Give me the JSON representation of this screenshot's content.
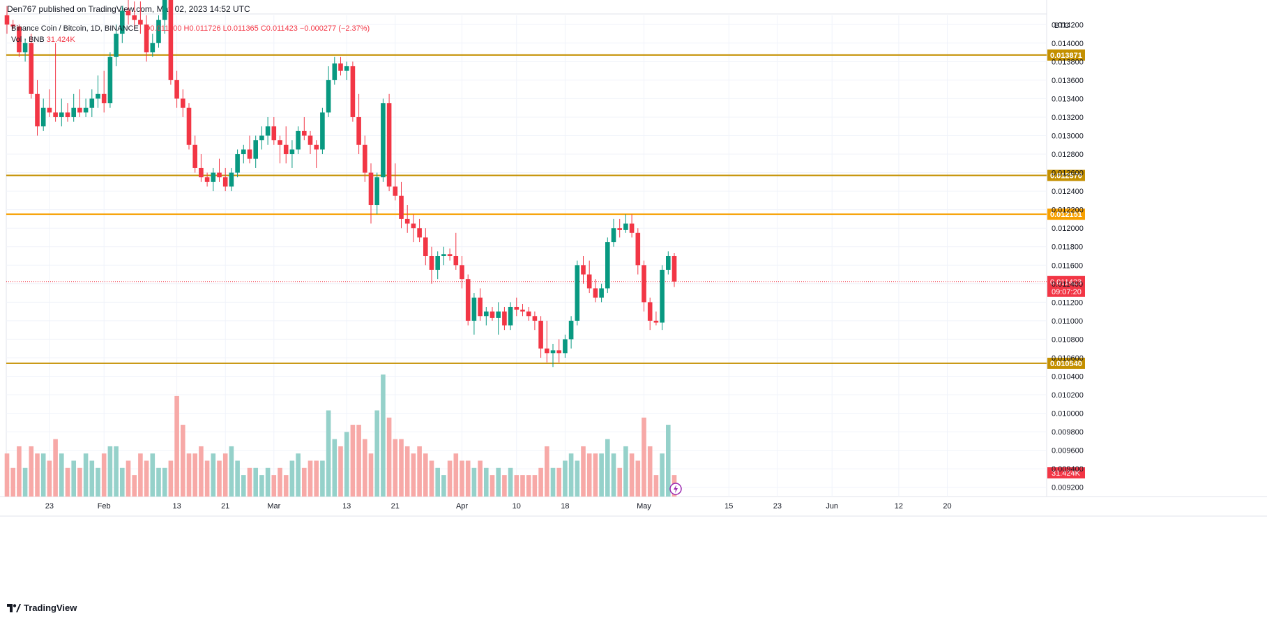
{
  "header": {
    "published": "Den767 published on TradingView.com, May 02, 2023 14:52 UTC"
  },
  "legend": {
    "symbol": "Binance Coin / Bitcoin, 1D, BINANCE",
    "ohlc": "O0.011700  H0.011726  L0.011365  C0.011423  −0.000277 (−2.37%)",
    "volume_label": "Vol · BNB",
    "volume_value": "31.424K"
  },
  "footer": {
    "brand": "TradingView"
  },
  "colors": {
    "up": "#089981",
    "down": "#f23645",
    "up_vol": "#95d1ca",
    "down_vol": "#f7a9a7",
    "level": "#c49000",
    "level_bright": "#f7a000",
    "grid": "#f0f3fa"
  },
  "chart_data": {
    "type": "candlestick",
    "price_axis_label": "BTC",
    "ylim": [
      0.0091,
      0.0143
    ],
    "y_ticks": [
      "0.009200",
      "0.009400",
      "0.009600",
      "0.009800",
      "0.010000",
      "0.010200",
      "0.010400",
      "0.010600",
      "0.010800",
      "0.011000",
      "0.011200",
      "0.011400",
      "0.011600",
      "0.011800",
      "0.012000",
      "0.012200",
      "0.012400",
      "0.012600",
      "0.012800",
      "0.013000",
      "0.013200",
      "0.013400",
      "0.013600",
      "0.013800",
      "0.014000",
      "0.014200"
    ],
    "x_labels": [
      {
        "label": "23",
        "index": 7
      },
      {
        "label": "Feb",
        "index": 16
      },
      {
        "label": "13",
        "index": 28
      },
      {
        "label": "21",
        "index": 36
      },
      {
        "label": "Mar",
        "index": 44
      },
      {
        "label": "13",
        "index": 56
      },
      {
        "label": "21",
        "index": 64
      },
      {
        "label": "Apr",
        "index": 75
      },
      {
        "label": "10",
        "index": 84
      },
      {
        "label": "18",
        "index": 92
      },
      {
        "label": "May",
        "index": 105
      },
      {
        "label": "15",
        "index": 119
      },
      {
        "label": "23",
        "index": 127
      },
      {
        "label": "Jun",
        "index": 136
      },
      {
        "label": "12",
        "index": 147
      },
      {
        "label": "20",
        "index": 155
      }
    ],
    "levels": [
      {
        "value": 0.013871,
        "label": "0.013871",
        "bright": false
      },
      {
        "value": 0.01257,
        "label": "0.012570",
        "bright": false
      },
      {
        "value": 0.012151,
        "label": "0.012151",
        "bright": true
      },
      {
        "value": 0.01054,
        "label": "0.010540",
        "bright": false
      }
    ],
    "last_price": {
      "value": 0.011423,
      "label": "0.011423",
      "countdown": "09:07:20"
    },
    "volume_last_label": "31.424K",
    "candles": [
      [
        0.0143,
        0.0144,
        0.0141,
        0.0142,
        6
      ],
      [
        0.0142,
        0.01425,
        0.01415,
        0.01418,
        4
      ],
      [
        0.01418,
        0.0142,
        0.01385,
        0.0139,
        7
      ],
      [
        0.0139,
        0.01405,
        0.0138,
        0.014,
        4
      ],
      [
        0.014,
        0.0141,
        0.0134,
        0.01345,
        7
      ],
      [
        0.01345,
        0.0136,
        0.013,
        0.0131,
        6
      ],
      [
        0.0131,
        0.0134,
        0.01305,
        0.0133,
        6
      ],
      [
        0.0133,
        0.0135,
        0.0132,
        0.01325,
        5
      ],
      [
        0.01325,
        0.014,
        0.01315,
        0.0132,
        8
      ],
      [
        0.0132,
        0.0134,
        0.0131,
        0.01325,
        6
      ],
      [
        0.01325,
        0.01335,
        0.01315,
        0.0132,
        4
      ],
      [
        0.0132,
        0.01345,
        0.01315,
        0.0133,
        5
      ],
      [
        0.0133,
        0.0135,
        0.0132,
        0.01325,
        4
      ],
      [
        0.01325,
        0.0134,
        0.0132,
        0.0133,
        6
      ],
      [
        0.0133,
        0.0135,
        0.0132,
        0.0134,
        5
      ],
      [
        0.0134,
        0.01365,
        0.0133,
        0.01345,
        4
      ],
      [
        0.01345,
        0.0137,
        0.01325,
        0.01335,
        6
      ],
      [
        0.01335,
        0.0139,
        0.0133,
        0.01385,
        7
      ],
      [
        0.01385,
        0.0142,
        0.01375,
        0.0141,
        7
      ],
      [
        0.0141,
        0.0144,
        0.014,
        0.01435,
        4
      ],
      [
        0.01435,
        0.0145,
        0.0142,
        0.0143,
        5
      ],
      [
        0.0143,
        0.01445,
        0.01415,
        0.01425,
        3
      ],
      [
        0.01425,
        0.01445,
        0.0141,
        0.0142,
        6
      ],
      [
        0.0142,
        0.0143,
        0.0138,
        0.0139,
        5
      ],
      [
        0.0139,
        0.0141,
        0.01385,
        0.014,
        6
      ],
      [
        0.014,
        0.0143,
        0.01395,
        0.01425,
        4
      ],
      [
        0.01425,
        0.0147,
        0.0141,
        0.0145,
        4
      ],
      [
        0.0145,
        0.01465,
        0.01355,
        0.0136,
        5
      ],
      [
        0.0136,
        0.0137,
        0.0133,
        0.0134,
        14
      ],
      [
        0.0134,
        0.0135,
        0.0132,
        0.0133,
        10
      ],
      [
        0.0133,
        0.01335,
        0.01285,
        0.0129,
        6
      ],
      [
        0.0129,
        0.013,
        0.0126,
        0.01265,
        6
      ],
      [
        0.01265,
        0.0128,
        0.0125,
        0.01255,
        7
      ],
      [
        0.01255,
        0.0126,
        0.01245,
        0.0125,
        5
      ],
      [
        0.0125,
        0.01265,
        0.0124,
        0.0126,
        6
      ],
      [
        0.0126,
        0.01275,
        0.0125,
        0.01255,
        5
      ],
      [
        0.01255,
        0.01265,
        0.0124,
        0.01245,
        6
      ],
      [
        0.01245,
        0.01265,
        0.0124,
        0.0126,
        7
      ],
      [
        0.0126,
        0.01285,
        0.01255,
        0.0128,
        5
      ],
      [
        0.0128,
        0.0129,
        0.0127,
        0.01285,
        3
      ],
      [
        0.01285,
        0.013,
        0.0127,
        0.01275,
        4
      ],
      [
        0.01275,
        0.013,
        0.01265,
        0.01295,
        4
      ],
      [
        0.01295,
        0.0131,
        0.01285,
        0.013,
        3
      ],
      [
        0.013,
        0.0132,
        0.0129,
        0.0131,
        4
      ],
      [
        0.0131,
        0.0132,
        0.0129,
        0.01295,
        3
      ],
      [
        0.01295,
        0.013,
        0.0127,
        0.0129,
        4
      ],
      [
        0.0129,
        0.0131,
        0.0127,
        0.0128,
        3
      ],
      [
        0.0128,
        0.01295,
        0.01265,
        0.01285,
        5
      ],
      [
        0.01285,
        0.0131,
        0.0128,
        0.01305,
        6
      ],
      [
        0.01305,
        0.0132,
        0.01295,
        0.013,
        4
      ],
      [
        0.013,
        0.01305,
        0.0128,
        0.0129,
        5
      ],
      [
        0.0129,
        0.01295,
        0.01265,
        0.01285,
        5
      ],
      [
        0.01285,
        0.0133,
        0.0128,
        0.01325,
        5
      ],
      [
        0.01325,
        0.01375,
        0.0132,
        0.0136,
        12
      ],
      [
        0.0136,
        0.01385,
        0.01355,
        0.01378,
        8
      ],
      [
        0.01378,
        0.01385,
        0.01365,
        0.0137,
        7
      ],
      [
        0.0137,
        0.0138,
        0.0136,
        0.01375,
        9
      ],
      [
        0.01375,
        0.0138,
        0.01315,
        0.0132,
        10
      ],
      [
        0.0132,
        0.01345,
        0.0128,
        0.0129,
        10
      ],
      [
        0.0129,
        0.013,
        0.0125,
        0.0126,
        8
      ],
      [
        0.0126,
        0.0127,
        0.01205,
        0.01225,
        6
      ],
      [
        0.01225,
        0.0126,
        0.01215,
        0.01255,
        12
      ],
      [
        0.01255,
        0.0134,
        0.0125,
        0.01335,
        17
      ],
      [
        0.01335,
        0.01345,
        0.0124,
        0.01245,
        11
      ],
      [
        0.01245,
        0.0127,
        0.0123,
        0.01235,
        8
      ],
      [
        0.01235,
        0.0125,
        0.012,
        0.0121,
        8
      ],
      [
        0.0121,
        0.01225,
        0.01195,
        0.01205,
        7
      ],
      [
        0.01205,
        0.01215,
        0.01185,
        0.012,
        6
      ],
      [
        0.012,
        0.0121,
        0.01185,
        0.0119,
        7
      ],
      [
        0.0119,
        0.012,
        0.0116,
        0.0117,
        6
      ],
      [
        0.0117,
        0.0118,
        0.0114,
        0.01155,
        5
      ],
      [
        0.01155,
        0.01175,
        0.01145,
        0.0117,
        4
      ],
      [
        0.0117,
        0.0118,
        0.0116,
        0.01172,
        3
      ],
      [
        0.01172,
        0.01178,
        0.01165,
        0.0117,
        5
      ],
      [
        0.0117,
        0.01195,
        0.01155,
        0.0116,
        6
      ],
      [
        0.0116,
        0.0117,
        0.01135,
        0.01145,
        5
      ],
      [
        0.01145,
        0.0115,
        0.01095,
        0.011,
        5
      ],
      [
        0.011,
        0.0113,
        0.01085,
        0.01125,
        4
      ],
      [
        0.01125,
        0.01135,
        0.011,
        0.01105,
        5
      ],
      [
        0.01105,
        0.01115,
        0.01095,
        0.0111,
        4
      ],
      [
        0.0111,
        0.01115,
        0.011,
        0.01103,
        3
      ],
      [
        0.01103,
        0.0112,
        0.01085,
        0.0111,
        4
      ],
      [
        0.0111,
        0.01115,
        0.0109,
        0.01095,
        3
      ],
      [
        0.01095,
        0.0112,
        0.0109,
        0.01115,
        4
      ],
      [
        0.01115,
        0.01125,
        0.01105,
        0.01112,
        3
      ],
      [
        0.01112,
        0.01118,
        0.01105,
        0.0111,
        3
      ],
      [
        0.0111,
        0.01115,
        0.011,
        0.01105,
        3
      ],
      [
        0.01105,
        0.0111,
        0.0109,
        0.011,
        3
      ],
      [
        0.011,
        0.01105,
        0.0106,
        0.0107,
        4
      ],
      [
        0.0107,
        0.011,
        0.01055,
        0.01065,
        7
      ],
      [
        0.01065,
        0.01075,
        0.0105,
        0.01068,
        4
      ],
      [
        0.01068,
        0.0108,
        0.01055,
        0.01065,
        4
      ],
      [
        0.01065,
        0.01085,
        0.0106,
        0.0108,
        5
      ],
      [
        0.0108,
        0.01105,
        0.0107,
        0.011,
        6
      ],
      [
        0.011,
        0.01165,
        0.01095,
        0.0116,
        5
      ],
      [
        0.0116,
        0.0117,
        0.0114,
        0.0115,
        7
      ],
      [
        0.0115,
        0.01165,
        0.0113,
        0.01135,
        6
      ],
      [
        0.01135,
        0.01145,
        0.0112,
        0.01125,
        6
      ],
      [
        0.01125,
        0.0114,
        0.0112,
        0.01135,
        6
      ],
      [
        0.01135,
        0.0119,
        0.0113,
        0.01185,
        8
      ],
      [
        0.01185,
        0.0121,
        0.0118,
        0.012,
        6
      ],
      [
        0.012,
        0.0121,
        0.0119,
        0.01198,
        4
      ],
      [
        0.01198,
        0.01215,
        0.01195,
        0.01205,
        7
      ],
      [
        0.01205,
        0.01215,
        0.0119,
        0.01195,
        6
      ],
      [
        0.01195,
        0.012,
        0.0115,
        0.0116,
        5
      ],
      [
        0.0116,
        0.01165,
        0.0111,
        0.0112,
        11
      ],
      [
        0.0112,
        0.01125,
        0.0109,
        0.011,
        7
      ],
      [
        0.011,
        0.0111,
        0.01095,
        0.01098,
        3
      ],
      [
        0.01098,
        0.0116,
        0.0109,
        0.01155,
        6
      ],
      [
        0.01155,
        0.01175,
        0.0115,
        0.0117,
        10
      ],
      [
        0.0117,
        0.01173,
        0.011365,
        0.011423,
        3
      ]
    ]
  }
}
